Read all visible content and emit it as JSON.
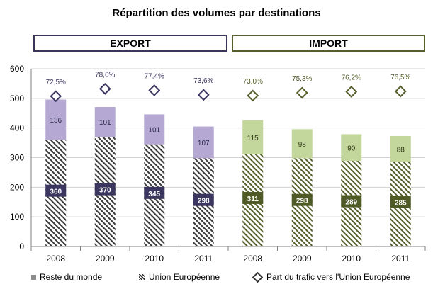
{
  "title": "Répartition des volumes par destinations",
  "groups": {
    "export": "EXPORT",
    "import": "IMPORT"
  },
  "legend": {
    "rest": "Reste du monde",
    "eu": "Union Européenne",
    "share": "Part du trafic vers l'Union Européenne"
  },
  "colors": {
    "export_rest": "#b5a9d3",
    "export_label": "#3b3660",
    "import_rest": "#c3d69b",
    "import_label": "#4f5b26",
    "diamond_export": "#3b3660",
    "diamond_import": "#56602d",
    "legend_gray": "#8c8c8c"
  },
  "chart_data": {
    "type": "bar",
    "stacked": true,
    "categories": [
      "2008",
      "2009",
      "2010",
      "2011",
      "2008",
      "2009",
      "2010",
      "2011"
    ],
    "groups": [
      "EXPORT",
      "EXPORT",
      "EXPORT",
      "EXPORT",
      "IMPORT",
      "IMPORT",
      "IMPORT",
      "IMPORT"
    ],
    "series": [
      {
        "name": "Union Européenne",
        "values": [
          360,
          370,
          345,
          298,
          311,
          298,
          289,
          285
        ]
      },
      {
        "name": "Reste du monde",
        "values": [
          136,
          101,
          101,
          107,
          115,
          98,
          90,
          88
        ]
      },
      {
        "name": "Part du trafic vers l'Union Européenne",
        "values": [
          72.5,
          78.6,
          77.4,
          73.6,
          73.0,
          75.3,
          76.2,
          76.5
        ],
        "labels": [
          "72,5%",
          "78,6%",
          "77,4%",
          "73,6%",
          "73,0%",
          "75,3%",
          "76,2%",
          "76,5%"
        ]
      }
    ],
    "ylim": [
      0,
      600
    ],
    "yticks": [
      0,
      100,
      200,
      300,
      400,
      500,
      600
    ],
    "grid": true,
    "legend_position": "bottom"
  }
}
